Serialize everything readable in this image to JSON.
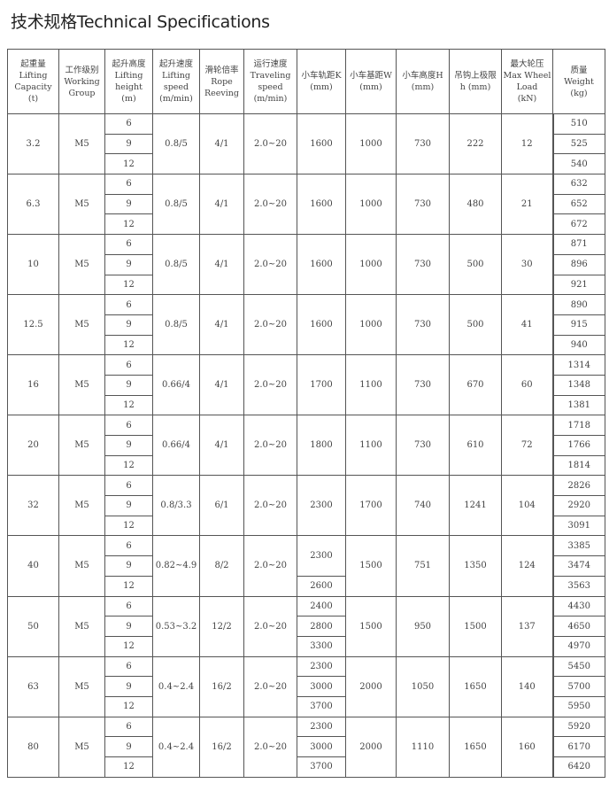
{
  "title": "技术规格Technical Specifications",
  "headers": [
    [
      "起重量",
      "Lifting",
      "Capacity",
      "(t)"
    ],
    [
      "工作级别",
      "Working",
      "Group"
    ],
    [
      "起升高度",
      "Lifting",
      "height",
      "(m)"
    ],
    [
      "起升速度",
      "Lifting",
      "speed",
      "(m/min)"
    ],
    [
      "滑轮倍率",
      "Rope",
      "Reeving"
    ],
    [
      "运行速度",
      "Traveling",
      "speed",
      "(m/min)"
    ],
    [
      "小车轨距K",
      "(mm)"
    ],
    [
      "小车基距W",
      "(mm)"
    ],
    [
      "小车高度H",
      "(mm)"
    ],
    [
      "吊钩上极限",
      "h (mm)"
    ],
    [
      "最大轮压",
      "Max Wheel",
      "Load",
      "(kN)"
    ],
    [
      "质量",
      "Weight",
      "(kg)"
    ]
  ],
  "groups": [
    {
      "capacity": "3.2",
      "group": "M5",
      "heights": [
        "6",
        "9",
        "12"
      ],
      "speed": "0.8/5",
      "reeving": "4/1",
      "travel": "2.0~20",
      "K": [
        "1600"
      ],
      "W": "1000",
      "H": "730",
      "h": "222",
      "load": "12",
      "weights": [
        "510",
        "525",
        "540"
      ]
    },
    {
      "capacity": "6.3",
      "group": "M5",
      "heights": [
        "6",
        "9",
        "12"
      ],
      "speed": "0.8/5",
      "reeving": "4/1",
      "travel": "2.0~20",
      "K": [
        "1600"
      ],
      "W": "1000",
      "H": "730",
      "h": "480",
      "load": "21",
      "weights": [
        "632",
        "652",
        "672"
      ]
    },
    {
      "capacity": "10",
      "group": "M5",
      "heights": [
        "6",
        "9",
        "12"
      ],
      "speed": "0.8/5",
      "reeving": "4/1",
      "travel": "2.0~20",
      "K": [
        "1600"
      ],
      "W": "1000",
      "H": "730",
      "h": "500",
      "load": "30",
      "weights": [
        "871",
        "896",
        "921"
      ]
    },
    {
      "capacity": "12.5",
      "group": "M5",
      "heights": [
        "6",
        "9",
        "12"
      ],
      "speed": "0.8/5",
      "reeving": "4/1",
      "travel": "2.0~20",
      "K": [
        "1600"
      ],
      "W": "1000",
      "H": "730",
      "h": "500",
      "load": "41",
      "weights": [
        "890",
        "915",
        "940"
      ]
    },
    {
      "capacity": "16",
      "group": "M5",
      "heights": [
        "6",
        "9",
        "12"
      ],
      "speed": "0.66/4",
      "reeving": "4/1",
      "travel": "2.0~20",
      "K": [
        "1700"
      ],
      "W": "1100",
      "H": "730",
      "h": "670",
      "load": "60",
      "weights": [
        "1314",
        "1348",
        "1381"
      ]
    },
    {
      "capacity": "20",
      "group": "M5",
      "heights": [
        "6",
        "9",
        "12"
      ],
      "speed": "0.66/4",
      "reeving": "4/1",
      "travel": "2.0~20",
      "K": [
        "1800"
      ],
      "W": "1100",
      "H": "730",
      "h": "610",
      "load": "72",
      "weights": [
        "1718",
        "1766",
        "1814"
      ]
    },
    {
      "capacity": "32",
      "group": "M5",
      "heights": [
        "6",
        "9",
        "12"
      ],
      "speed": "0.8/3.3",
      "reeving": "6/1",
      "travel": "2.0~20",
      "K": [
        "2300"
      ],
      "W": "1700",
      "H": "740",
      "h": "1241",
      "load": "104",
      "weights": [
        "2826",
        "2920",
        "3091"
      ]
    },
    {
      "capacity": "40",
      "group": "M5",
      "heights": [
        "6",
        "9",
        "12"
      ],
      "speed": "0.82~4.9",
      "reeving": "8/2",
      "travel": "2.0~20",
      "K": [
        "2300",
        "2600"
      ],
      "W": "1500",
      "H": "751",
      "h": "1350",
      "load": "124",
      "weights": [
        "3385",
        "3474",
        "3563"
      ]
    },
    {
      "capacity": "50",
      "group": "M5",
      "heights": [
        "6",
        "9",
        "12"
      ],
      "speed": "0.53~3.2",
      "reeving": "12/2",
      "travel": "2.0~20",
      "K": [
        "2400",
        "2800",
        "3300"
      ],
      "W": "1500",
      "H": "950",
      "h": "1500",
      "load": "137",
      "weights": [
        "4430",
        "4650",
        "4970"
      ]
    },
    {
      "capacity": "63",
      "group": "M5",
      "heights": [
        "6",
        "9",
        "12"
      ],
      "speed": "0.4~2.4",
      "reeving": "16/2",
      "travel": "2.0~20",
      "K": [
        "2300",
        "3000",
        "3700"
      ],
      "W": "2000",
      "H": "1050",
      "h": "1650",
      "load": "140",
      "weights": [
        "5450",
        "5700",
        "5950"
      ]
    },
    {
      "capacity": "80",
      "group": "M5",
      "heights": [
        "6",
        "9",
        "12"
      ],
      "speed": "0.4~2.4",
      "reeving": "16/2",
      "travel": "2.0~20",
      "K": [
        "2300",
        "3000",
        "3700"
      ],
      "W": "2000",
      "H": "1110",
      "h": "1650",
      "load": "160",
      "weights": [
        "5920",
        "6170",
        "6420"
      ]
    }
  ]
}
